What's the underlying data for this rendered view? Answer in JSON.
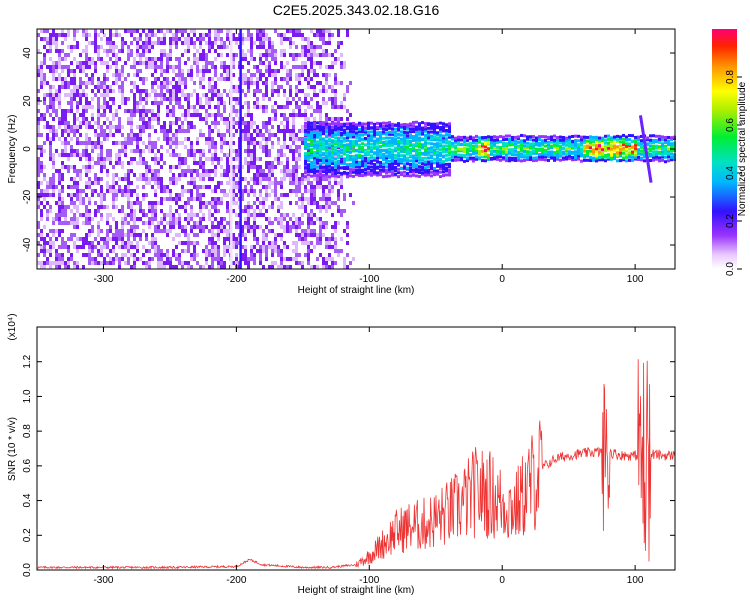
{
  "title": "C2E5.2025.343.02.18.G16",
  "chart_data": [
    {
      "type": "heatmap",
      "xlabel": "Height of straight line (km)",
      "ylabel": "Frequency (Hz)",
      "xlim": [
        -350,
        130
      ],
      "ylim": [
        -50,
        50
      ],
      "xticks": [
        -300,
        -200,
        -100,
        0,
        100
      ],
      "yticks": [
        -40,
        -20,
        0,
        20,
        40
      ],
      "colorbar": {
        "label": "Normalized spectral amplitude",
        "range": [
          0,
          1
        ],
        "ticks": [
          "0.0",
          "0.2",
          "0.4",
          "0.6",
          "0.8"
        ]
      },
      "features": {
        "broadband_noise_x": [
          -350,
          -130
        ],
        "signal_band_center_hz": 0,
        "vertical_streaks_km": [
          -204,
          -197
        ]
      }
    },
    {
      "type": "line",
      "xlabel": "Height of straight line (km)",
      "ylabel": "SNR (10 * v/v)",
      "yscale_label": "(x10⁴)",
      "color": "#ee3333",
      "xlim": [
        -350,
        130
      ],
      "ylim": [
        0,
        1.4
      ],
      "xticks": [
        -300,
        -200,
        -100,
        0,
        100
      ],
      "yticks": [
        "0.0",
        "0.2",
        "0.4",
        "0.6",
        "0.8",
        "1.0",
        "1.2"
      ],
      "x": [
        -350,
        -300,
        -250,
        -200,
        -190,
        -180,
        -150,
        -130,
        -110,
        -100,
        -90,
        -80,
        -70,
        -60,
        -50,
        -40,
        -30,
        -20,
        -10,
        0,
        10,
        20,
        30,
        40,
        50,
        60,
        70,
        80,
        90,
        100,
        110,
        120,
        130
      ],
      "y": [
        0.015,
        0.015,
        0.015,
        0.02,
        0.06,
        0.03,
        0.015,
        0.015,
        0.03,
        0.08,
        0.15,
        0.22,
        0.25,
        0.26,
        0.29,
        0.33,
        0.38,
        0.45,
        0.44,
        0.38,
        0.36,
        0.48,
        0.59,
        0.64,
        0.66,
        0.67,
        0.68,
        0.68,
        0.66,
        0.66,
        0.67,
        0.66,
        0.66
      ]
    }
  ]
}
